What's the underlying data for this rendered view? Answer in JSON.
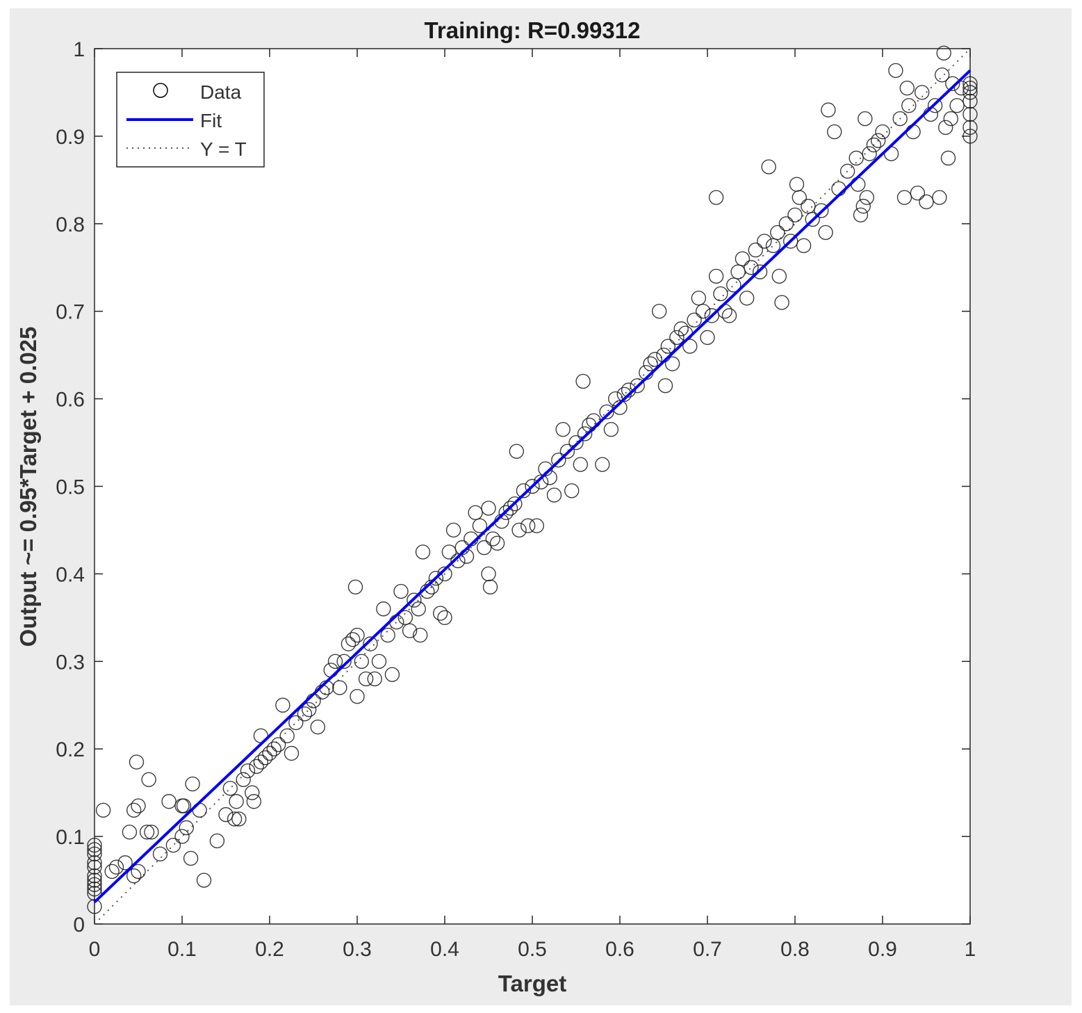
{
  "chart_data": {
    "type": "scatter",
    "title": "Training: R=0.99312",
    "xlabel": "Target",
    "ylabel": "Output ~= 0.95*Target + 0.025",
    "xlim": [
      0,
      1
    ],
    "ylim": [
      0,
      1
    ],
    "xticks": [
      "0",
      "0.1",
      "0.2",
      "0.3",
      "0.4",
      "0.5",
      "0.6",
      "0.7",
      "0.8",
      "0.9",
      "1"
    ],
    "yticks": [
      "0",
      "0.1",
      "0.2",
      "0.3",
      "0.4",
      "0.5",
      "0.6",
      "0.7",
      "0.8",
      "0.9",
      "1"
    ],
    "grid": false,
    "legend_position": "top-left",
    "legend": [
      {
        "label": "Data",
        "marker": "circle-icon",
        "color": "#000000"
      },
      {
        "label": "Fit",
        "line": "solid",
        "color": "#0000ff"
      },
      {
        "label": "Y = T",
        "line": "dotted",
        "color": "#555555"
      }
    ],
    "fit": {
      "slope": 0.95,
      "intercept": 0.025,
      "color": "#0000ff"
    },
    "identity_line": {
      "slope": 1,
      "intercept": 0
    },
    "series": [
      {
        "name": "Data",
        "points": [
          [
            0,
            0.02
          ],
          [
            0,
            0.035
          ],
          [
            0,
            0.04
          ],
          [
            0,
            0.045
          ],
          [
            0,
            0.05
          ],
          [
            0,
            0.055
          ],
          [
            0,
            0.065
          ],
          [
            0,
            0.07
          ],
          [
            0,
            0.08
          ],
          [
            0,
            0.085
          ],
          [
            0,
            0.09
          ],
          [
            0.01,
            0.13
          ],
          [
            0.02,
            0.06
          ],
          [
            0.025,
            0.065
          ],
          [
            0.035,
            0.07
          ],
          [
            0.04,
            0.105
          ],
          [
            0.045,
            0.13
          ],
          [
            0.045,
            0.055
          ],
          [
            0.05,
            0.135
          ],
          [
            0.05,
            0.06
          ],
          [
            0.048,
            0.185
          ],
          [
            0.06,
            0.105
          ],
          [
            0.062,
            0.165
          ],
          [
            0.065,
            0.105
          ],
          [
            0.075,
            0.08
          ],
          [
            0.085,
            0.14
          ],
          [
            0.09,
            0.09
          ],
          [
            0.1,
            0.135
          ],
          [
            0.1,
            0.1
          ],
          [
            0.102,
            0.135
          ],
          [
            0.105,
            0.11
          ],
          [
            0.11,
            0.075
          ],
          [
            0.112,
            0.16
          ],
          [
            0.12,
            0.13
          ],
          [
            0.125,
            0.05
          ],
          [
            0.14,
            0.095
          ],
          [
            0.15,
            0.125
          ],
          [
            0.155,
            0.155
          ],
          [
            0.16,
            0.12
          ],
          [
            0.162,
            0.14
          ],
          [
            0.165,
            0.12
          ],
          [
            0.17,
            0.165
          ],
          [
            0.175,
            0.175
          ],
          [
            0.18,
            0.15
          ],
          [
            0.182,
            0.14
          ],
          [
            0.185,
            0.18
          ],
          [
            0.19,
            0.215
          ],
          [
            0.19,
            0.185
          ],
          [
            0.195,
            0.19
          ],
          [
            0.2,
            0.195
          ],
          [
            0.205,
            0.2
          ],
          [
            0.21,
            0.205
          ],
          [
            0.215,
            0.25
          ],
          [
            0.22,
            0.215
          ],
          [
            0.225,
            0.195
          ],
          [
            0.23,
            0.23
          ],
          [
            0.24,
            0.24
          ],
          [
            0.245,
            0.245
          ],
          [
            0.25,
            0.255
          ],
          [
            0.255,
            0.225
          ],
          [
            0.26,
            0.265
          ],
          [
            0.265,
            0.27
          ],
          [
            0.27,
            0.29
          ],
          [
            0.275,
            0.3
          ],
          [
            0.28,
            0.27
          ],
          [
            0.285,
            0.3
          ],
          [
            0.29,
            0.32
          ],
          [
            0.295,
            0.325
          ],
          [
            0.298,
            0.385
          ],
          [
            0.3,
            0.33
          ],
          [
            0.3,
            0.26
          ],
          [
            0.305,
            0.3
          ],
          [
            0.31,
            0.28
          ],
          [
            0.315,
            0.32
          ],
          [
            0.32,
            0.28
          ],
          [
            0.325,
            0.3
          ],
          [
            0.33,
            0.36
          ],
          [
            0.335,
            0.33
          ],
          [
            0.34,
            0.285
          ],
          [
            0.345,
            0.345
          ],
          [
            0.35,
            0.38
          ],
          [
            0.355,
            0.35
          ],
          [
            0.36,
            0.335
          ],
          [
            0.365,
            0.37
          ],
          [
            0.37,
            0.36
          ],
          [
            0.372,
            0.33
          ],
          [
            0.375,
            0.425
          ],
          [
            0.38,
            0.38
          ],
          [
            0.385,
            0.385
          ],
          [
            0.39,
            0.395
          ],
          [
            0.395,
            0.355
          ],
          [
            0.4,
            0.35
          ],
          [
            0.4,
            0.4
          ],
          [
            0.405,
            0.425
          ],
          [
            0.41,
            0.45
          ],
          [
            0.415,
            0.415
          ],
          [
            0.42,
            0.43
          ],
          [
            0.425,
            0.42
          ],
          [
            0.43,
            0.44
          ],
          [
            0.435,
            0.47
          ],
          [
            0.44,
            0.455
          ],
          [
            0.445,
            0.43
          ],
          [
            0.45,
            0.475
          ],
          [
            0.45,
            0.4
          ],
          [
            0.452,
            0.385
          ],
          [
            0.455,
            0.44
          ],
          [
            0.46,
            0.435
          ],
          [
            0.465,
            0.46
          ],
          [
            0.47,
            0.47
          ],
          [
            0.475,
            0.475
          ],
          [
            0.48,
            0.48
          ],
          [
            0.482,
            0.54
          ],
          [
            0.485,
            0.45
          ],
          [
            0.49,
            0.495
          ],
          [
            0.495,
            0.455
          ],
          [
            0.5,
            0.5
          ],
          [
            0.505,
            0.455
          ],
          [
            0.51,
            0.505
          ],
          [
            0.515,
            0.52
          ],
          [
            0.52,
            0.51
          ],
          [
            0.525,
            0.49
          ],
          [
            0.53,
            0.53
          ],
          [
            0.535,
            0.565
          ],
          [
            0.54,
            0.54
          ],
          [
            0.545,
            0.495
          ],
          [
            0.55,
            0.55
          ],
          [
            0.555,
            0.525
          ],
          [
            0.558,
            0.62
          ],
          [
            0.56,
            0.56
          ],
          [
            0.565,
            0.57
          ],
          [
            0.57,
            0.575
          ],
          [
            0.58,
            0.525
          ],
          [
            0.585,
            0.585
          ],
          [
            0.59,
            0.565
          ],
          [
            0.595,
            0.6
          ],
          [
            0.6,
            0.59
          ],
          [
            0.605,
            0.605
          ],
          [
            0.61,
            0.61
          ],
          [
            0.62,
            0.615
          ],
          [
            0.63,
            0.63
          ],
          [
            0.635,
            0.64
          ],
          [
            0.64,
            0.645
          ],
          [
            0.645,
            0.7
          ],
          [
            0.65,
            0.65
          ],
          [
            0.652,
            0.615
          ],
          [
            0.655,
            0.66
          ],
          [
            0.66,
            0.64
          ],
          [
            0.665,
            0.67
          ],
          [
            0.67,
            0.68
          ],
          [
            0.675,
            0.675
          ],
          [
            0.68,
            0.66
          ],
          [
            0.685,
            0.69
          ],
          [
            0.69,
            0.715
          ],
          [
            0.695,
            0.7
          ],
          [
            0.7,
            0.67
          ],
          [
            0.705,
            0.695
          ],
          [
            0.71,
            0.74
          ],
          [
            0.71,
            0.83
          ],
          [
            0.715,
            0.72
          ],
          [
            0.72,
            0.7
          ],
          [
            0.725,
            0.695
          ],
          [
            0.73,
            0.73
          ],
          [
            0.735,
            0.745
          ],
          [
            0.74,
            0.76
          ],
          [
            0.745,
            0.715
          ],
          [
            0.75,
            0.75
          ],
          [
            0.755,
            0.77
          ],
          [
            0.76,
            0.745
          ],
          [
            0.765,
            0.78
          ],
          [
            0.77,
            0.865
          ],
          [
            0.775,
            0.775
          ],
          [
            0.78,
            0.79
          ],
          [
            0.782,
            0.74
          ],
          [
            0.785,
            0.71
          ],
          [
            0.79,
            0.8
          ],
          [
            0.795,
            0.78
          ],
          [
            0.8,
            0.81
          ],
          [
            0.802,
            0.845
          ],
          [
            0.805,
            0.83
          ],
          [
            0.81,
            0.775
          ],
          [
            0.815,
            0.82
          ],
          [
            0.82,
            0.805
          ],
          [
            0.83,
            0.815
          ],
          [
            0.835,
            0.79
          ],
          [
            0.838,
            0.93
          ],
          [
            0.845,
            0.905
          ],
          [
            0.85,
            0.84
          ],
          [
            0.86,
            0.86
          ],
          [
            0.87,
            0.875
          ],
          [
            0.872,
            0.845
          ],
          [
            0.875,
            0.81
          ],
          [
            0.878,
            0.82
          ],
          [
            0.88,
            0.92
          ],
          [
            0.882,
            0.83
          ],
          [
            0.885,
            0.88
          ],
          [
            0.89,
            0.89
          ],
          [
            0.895,
            0.895
          ],
          [
            0.9,
            0.905
          ],
          [
            0.91,
            0.88
          ],
          [
            0.915,
            0.975
          ],
          [
            0.92,
            0.92
          ],
          [
            0.925,
            0.83
          ],
          [
            0.928,
            0.955
          ],
          [
            0.93,
            0.935
          ],
          [
            0.935,
            0.905
          ],
          [
            0.94,
            0.835
          ],
          [
            0.945,
            0.95
          ],
          [
            0.95,
            0.825
          ],
          [
            0.955,
            0.925
          ],
          [
            0.96,
            0.935
          ],
          [
            0.965,
            0.83
          ],
          [
            0.968,
            0.97
          ],
          [
            0.97,
            0.995
          ],
          [
            0.972,
            0.91
          ],
          [
            0.975,
            0.875
          ],
          [
            0.978,
            0.92
          ],
          [
            0.98,
            0.96
          ],
          [
            0.985,
            0.935
          ],
          [
            0.99,
            0.955
          ],
          [
            1,
            0.9
          ],
          [
            1,
            0.91
          ],
          [
            1,
            0.925
          ],
          [
            1,
            0.94
          ],
          [
            1,
            0.95
          ],
          [
            1,
            0.955
          ],
          [
            1,
            0.96
          ]
        ]
      }
    ]
  }
}
